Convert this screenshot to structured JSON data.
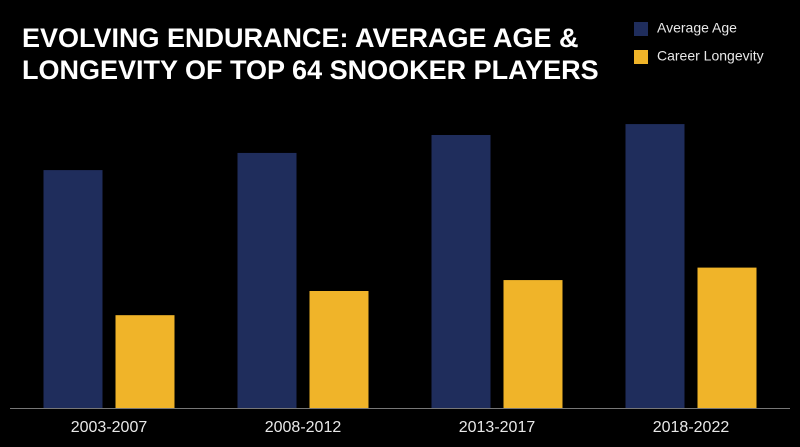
{
  "chart_data": {
    "type": "bar",
    "title": [
      "EVOLVING ENDURANCE: AVERAGE AGE &",
      "LONGEVITY OF TOP 64 SNOOKER PLAYERS"
    ],
    "categories": [
      "2003-2007",
      "2008-2012",
      "2013-2017",
      "2018-2022"
    ],
    "series": [
      {
        "name": "Average Age",
        "color": "#1f2d5c",
        "values": [
          30.5,
          32.7,
          35.0,
          36.4
        ]
      },
      {
        "name": "Career Longevity",
        "color": "#f0b429",
        "values": [
          11.9,
          15.0,
          16.4,
          18.0
        ]
      }
    ],
    "ylim": [
      0,
      40
    ],
    "legend": "top-right"
  }
}
